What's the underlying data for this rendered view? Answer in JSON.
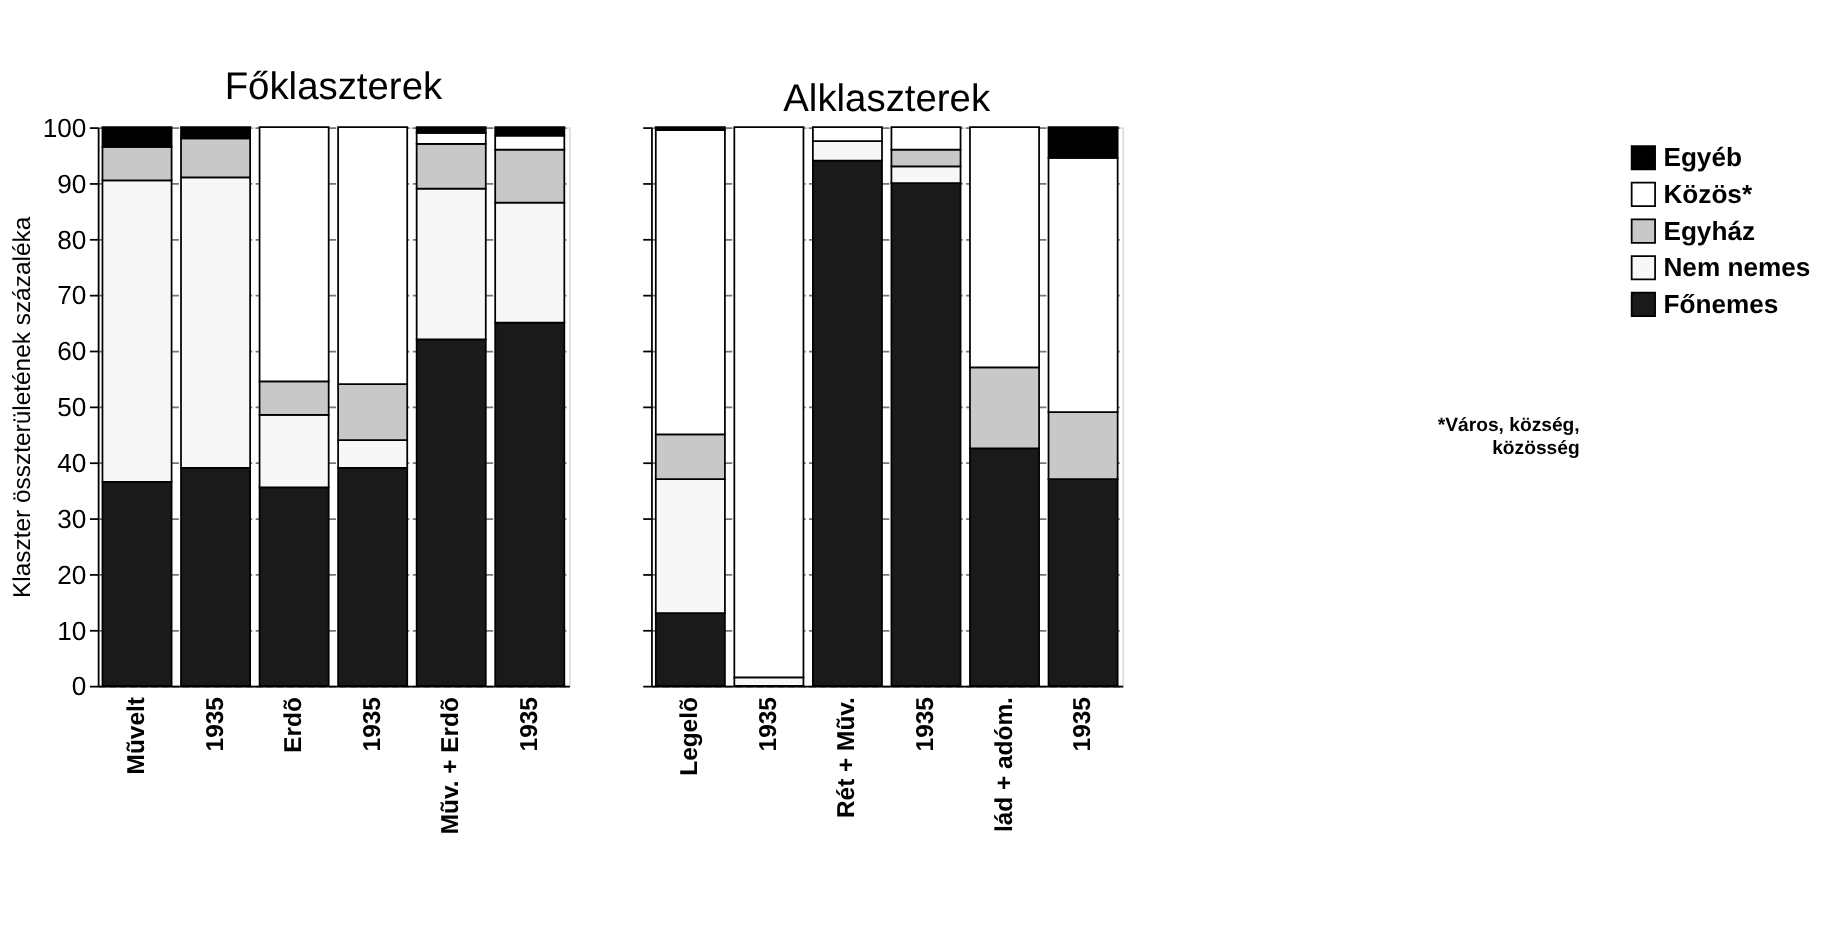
{
  "chart_data": [
    {
      "type": "bar",
      "stacked": true,
      "title": "Főklaszterek",
      "ylabel": "Klaszter összterületének százaléka",
      "categories": [
        "Mũvelt",
        "1935",
        "Erdõ",
        "1935",
        "Mũv. + Erdõ",
        "1935"
      ],
      "ylim": [
        0,
        100
      ],
      "yticks": [
        0,
        10,
        20,
        30,
        40,
        50,
        60,
        70,
        80,
        90,
        100
      ],
      "grid": "y",
      "legend": "right",
      "series": [
        {
          "name": "Főnemes",
          "color": "#1a1a1a",
          "values": [
            36.5,
            39,
            35.5,
            39,
            62,
            65
          ]
        },
        {
          "name": "Nem nemes",
          "color": "#f7f7f7",
          "values": [
            54,
            52,
            13,
            5,
            27,
            21.5
          ]
        },
        {
          "name": "Egyház",
          "color": "#c8c8c8",
          "values": [
            6,
            7,
            6,
            10,
            8,
            9.5
          ]
        },
        {
          "name": "Közös*",
          "color": "#ffffff",
          "values": [
            null,
            null,
            45.5,
            46,
            2,
            2.5
          ]
        },
        {
          "name": "Egyéb",
          "color": "#000000",
          "values": [
            3.5,
            2,
            null,
            null,
            1,
            1.5
          ]
        }
      ]
    },
    {
      "type": "bar",
      "stacked": true,
      "title": "Alklaszterek",
      "categories": [
        "Legelõ",
        "1935",
        "Rét + Mũv.",
        "1935",
        "lád + adóm.",
        "1935"
      ],
      "ylim": [
        0,
        100
      ],
      "yticks": [
        0,
        10,
        20,
        30,
        40,
        50,
        60,
        70,
        80,
        90,
        100
      ],
      "grid": "y",
      "tick_labels": "x",
      "legend": "right",
      "annotations": [
        "*Város, község, közösség"
      ],
      "series": [
        {
          "name": "Főnemes",
          "color": "#1a1a1a",
          "values": [
            13,
            null,
            94,
            90,
            42.5,
            37
          ]
        },
        {
          "name": "Nem nemes",
          "color": "#f7f7f7",
          "values": [
            24,
            1.5,
            3.5,
            3,
            null,
            null
          ]
        },
        {
          "name": "Egyház",
          "color": "#c8c8c8",
          "values": [
            8,
            null,
            null,
            3,
            14.5,
            12
          ]
        },
        {
          "name": "Közös*",
          "color": "#ffffff",
          "values": [
            54.5,
            98.5,
            2.5,
            4,
            43,
            45.5
          ]
        },
        {
          "name": "Egyéb",
          "color": "#000000",
          "values": [
            0.5,
            null,
            null,
            null,
            null,
            5.5
          ]
        }
      ]
    }
  ]
}
